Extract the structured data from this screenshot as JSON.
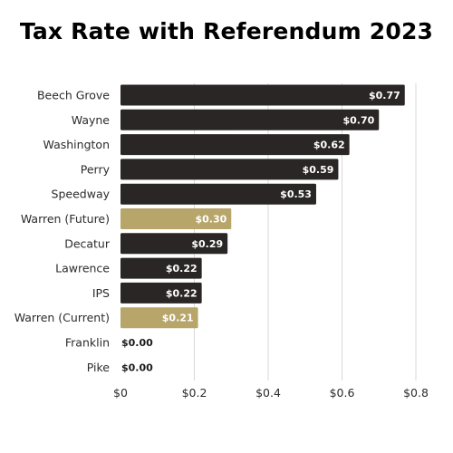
{
  "chart_data": {
    "type": "bar",
    "orientation": "horizontal",
    "title": "Tax Rate with Referendum 2023",
    "xlabel": "",
    "ylabel": "",
    "categories": [
      "Beech Grove",
      "Wayne",
      "Washington",
      "Perry",
      "Speedway",
      "Warren (Future)",
      "Decatur",
      "Lawrence",
      "IPS",
      "Warren (Current)",
      "Franklin",
      "Pike"
    ],
    "values": [
      0.77,
      0.7,
      0.62,
      0.59,
      0.53,
      0.3,
      0.29,
      0.22,
      0.22,
      0.21,
      0.0,
      0.0
    ],
    "value_labels": [
      "$0.77",
      "$0.70",
      "$0.62",
      "$0.59",
      "$0.53",
      "$0.30",
      "$0.29",
      "$0.22",
      "$0.22",
      "$0.21",
      "$0.00",
      "$0.00"
    ],
    "highlighted": [
      false,
      false,
      false,
      false,
      false,
      true,
      false,
      false,
      false,
      true,
      false,
      false
    ],
    "xlim": [
      0,
      0.8
    ],
    "xticks": [
      0,
      0.2,
      0.4,
      0.6,
      0.8
    ],
    "xtick_labels": [
      "$0",
      "$0.2",
      "$0.4",
      "$0.6",
      "$0.8"
    ],
    "grid": true,
    "colors": {
      "bar": "#2b2626",
      "highlight": "#b7a56a",
      "bar_label": "#ffffff",
      "zero_label": "#1a1a1a",
      "grid": "#d9d9d9"
    }
  }
}
